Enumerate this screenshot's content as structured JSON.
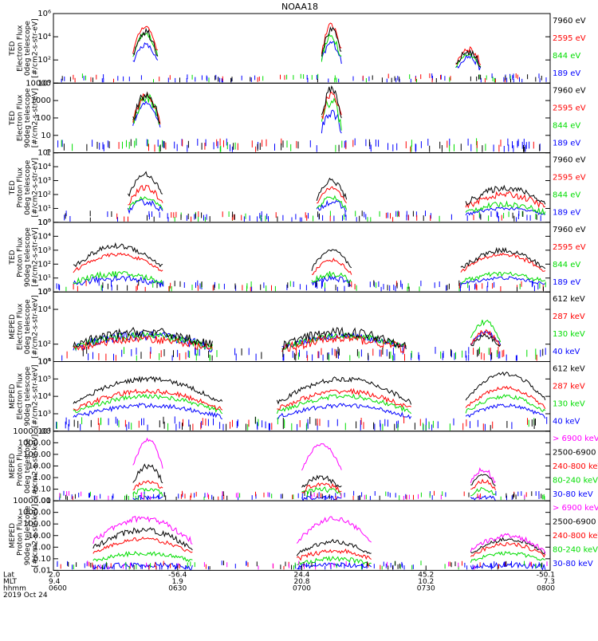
{
  "title": "NOAA18",
  "colors": {
    "black": "#000000",
    "red": "#ff0000",
    "green": "#00dd00",
    "blue": "#0000ff",
    "magenta": "#ff00ff"
  },
  "time_axis": {
    "rows": [
      {
        "label": "Lat",
        "values": [
          "2.0",
          "-56.4",
          "24.4",
          "45.2",
          "-50.1"
        ]
      },
      {
        "label": "MLT",
        "values": [
          "9.4",
          "1.9",
          "20.8",
          "10.2",
          "7.3"
        ]
      },
      {
        "label": "hhmm",
        "values": [
          "0600",
          "0630",
          "0700",
          "0730",
          "0800"
        ]
      }
    ],
    "date": "2019 Oct 24"
  },
  "chart_data": [
    {
      "type": "line",
      "scale": "log",
      "ylim": [
        1,
        1000000
      ],
      "ylabel_lines": [
        "TED",
        "Electron Flux",
        "0deg telescope",
        "[#/cm2-s-str-eV]"
      ],
      "y_ticks": [
        1,
        100,
        10000,
        1000000
      ],
      "y_tick_labels": [
        "10⁰",
        "10²",
        "10⁴",
        "10⁶"
      ],
      "legend": [
        {
          "label": "7960 eV",
          "color": "#000000"
        },
        {
          "label": "2595 eV",
          "color": "#ff0000"
        },
        {
          "label": "844 eV",
          "color": "#00dd00"
        },
        {
          "label": "189 eV",
          "color": "#0000ff"
        }
      ],
      "bursts": [
        {
          "t": [
            0.16,
            0.21
          ],
          "levels": [
            2000,
            20000,
            80000,
            30000
          ],
          "noise": [
            0.25,
            0.8
          ]
        },
        {
          "t": [
            0.54,
            0.58
          ],
          "levels": [
            3000,
            10000,
            100000,
            40000
          ],
          "noise": [
            0.25,
            0.85
          ]
        },
        {
          "t": [
            0.81,
            0.86
          ],
          "levels": [
            200,
            300,
            1000,
            500
          ],
          "noise": [
            0.25,
            0.7
          ]
        }
      ]
    },
    {
      "type": "line",
      "scale": "log",
      "ylim": [
        1,
        10000
      ],
      "ylabel_lines": [
        "TED",
        "Electron Flux",
        "90deg telescope",
        "[#/cm2-s-str-eV]"
      ],
      "y_ticks": [
        1,
        10,
        100,
        1000,
        10000
      ],
      "y_tick_labels": [
        "1",
        "10",
        "100",
        "1000",
        "10000"
      ],
      "legend": [
        {
          "label": "7960 eV",
          "color": "#000000"
        },
        {
          "label": "2595 eV",
          "color": "#ff0000"
        },
        {
          "label": "844 eV",
          "color": "#00dd00"
        },
        {
          "label": "189 eV",
          "color": "#0000ff"
        }
      ],
      "bursts": [
        {
          "t": [
            0.16,
            0.215
          ],
          "levels": [
            700,
            1500,
            2000,
            2000
          ],
          "noise": [
            0.25,
            0.8
          ]
        },
        {
          "t": [
            0.54,
            0.58
          ],
          "levels": [
            300,
            1000,
            3000,
            5000
          ],
          "noise": [
            0.25,
            0.85
          ]
        }
      ]
    },
    {
      "type": "line",
      "scale": "log",
      "ylim": [
        1,
        100000
      ],
      "ylabel_lines": [
        "TED",
        "Proton Flux",
        "0deg telescope",
        "[#/cm2-s-str-eV]"
      ],
      "y_ticks": [
        1,
        10,
        100,
        1000,
        10000,
        100000
      ],
      "y_tick_labels": [
        "10⁰",
        "10¹",
        "10²",
        "10³",
        "10⁴",
        "10⁵"
      ],
      "legend": [
        {
          "label": "7960 eV",
          "color": "#000000"
        },
        {
          "label": "2595 eV",
          "color": "#ff0000"
        },
        {
          "label": "844 eV",
          "color": "#00dd00"
        },
        {
          "label": "189 eV",
          "color": "#0000ff"
        }
      ],
      "bursts": [
        {
          "t": [
            0.15,
            0.22
          ],
          "levels": [
            30,
            60,
            300,
            3000
          ],
          "noise": [
            0.2,
            0.5
          ]
        },
        {
          "t": [
            0.53,
            0.59
          ],
          "levels": [
            30,
            60,
            300,
            1000
          ],
          "noise": [
            0.2,
            0.5
          ]
        },
        {
          "t": [
            0.83,
            0.99
          ],
          "levels": [
            10,
            20,
            100,
            300
          ],
          "noise": [
            0.2,
            0.45
          ]
        }
      ]
    },
    {
      "type": "line",
      "scale": "log",
      "ylim": [
        1,
        100000
      ],
      "ylabel_lines": [
        "TED",
        "Proton Flux",
        "90deg telescope",
        "[#/cm2-s-str-eV]"
      ],
      "y_ticks": [
        1,
        10,
        100,
        1000,
        10000,
        100000
      ],
      "y_tick_labels": [
        "10⁰",
        "10¹",
        "10²",
        "10³",
        "10⁴",
        "10⁵"
      ],
      "legend": [
        {
          "label": "7960 eV",
          "color": "#000000"
        },
        {
          "label": "2595 eV",
          "color": "#ff0000"
        },
        {
          "label": "844 eV",
          "color": "#00dd00"
        },
        {
          "label": "189 eV",
          "color": "#0000ff"
        }
      ],
      "bursts": [
        {
          "t": [
            0.04,
            0.22
          ],
          "levels": [
            10,
            20,
            500,
            2000
          ],
          "noise": [
            0.2,
            0.5
          ]
        },
        {
          "t": [
            0.52,
            0.6
          ],
          "levels": [
            10,
            20,
            200,
            1000
          ],
          "noise": [
            0.2,
            0.5
          ]
        },
        {
          "t": [
            0.82,
            0.99
          ],
          "levels": [
            10,
            20,
            500,
            1000
          ],
          "noise": [
            0.2,
            0.45
          ]
        }
      ]
    },
    {
      "type": "line",
      "scale": "log",
      "ylim": [
        10,
        100000
      ],
      "ylabel_lines": [
        "MEPED",
        "Electron Flux",
        "0deg telescope",
        "[#/cm2-s-str-keV]"
      ],
      "y_ticks": [
        10,
        100,
        10000,
        100000
      ],
      "y_tick_labels": [
        "10¹",
        "10²",
        "10⁴",
        "10⁵"
      ],
      "legend": [
        {
          "label": "612 keV",
          "color": "#000000"
        },
        {
          "label": "287 keV",
          "color": "#ff0000"
        },
        {
          "label": "130 keV",
          "color": "#00dd00"
        },
        {
          "label": "40 keV",
          "color": "#0000ff"
        }
      ],
      "bursts": [
        {
          "t": [
            0.04,
            0.32
          ],
          "levels": [
            300,
            300,
            200,
            500
          ],
          "noise": [
            0.3,
            0.6
          ]
        },
        {
          "t": [
            0.46,
            0.71
          ],
          "levels": [
            300,
            300,
            200,
            500
          ],
          "noise": [
            0.3,
            0.6
          ]
        },
        {
          "t": [
            0.84,
            0.9
          ],
          "levels": [
            500,
            2000,
            500,
            300
          ],
          "noise": [
            0.2,
            0.4
          ]
        }
      ]
    },
    {
      "type": "line",
      "scale": "log",
      "ylim": [
        100,
        1000000
      ],
      "ylabel_lines": [
        "MEPED",
        "Electron Flux",
        "90deg telescope",
        "[#/cm2-s-str-keV]"
      ],
      "y_ticks": [
        100,
        1000,
        10000,
        100000,
        1000000
      ],
      "y_tick_labels": [
        "10²",
        "10³",
        "10⁴",
        "10⁵",
        "10⁶"
      ],
      "legend": [
        {
          "label": "612 keV",
          "color": "#000000"
        },
        {
          "label": "287 keV",
          "color": "#ff0000"
        },
        {
          "label": "130 keV",
          "color": "#00dd00"
        },
        {
          "label": "40 keV",
          "color": "#0000ff"
        }
      ],
      "bursts": [
        {
          "t": [
            0.04,
            0.34
          ],
          "levels": [
            3000,
            10000,
            20000,
            100000
          ],
          "noise": [
            0.15,
            0.3
          ]
        },
        {
          "t": [
            0.45,
            0.72
          ],
          "levels": [
            3000,
            10000,
            20000,
            100000
          ],
          "noise": [
            0.15,
            0.3
          ]
        },
        {
          "t": [
            0.83,
            0.99
          ],
          "levels": [
            3000,
            10000,
            30000,
            200000
          ],
          "noise": [
            0.15,
            0.3
          ]
        }
      ]
    },
    {
      "type": "line",
      "scale": "log",
      "ylim": [
        0.01,
        10000
      ],
      "ylabel_lines": [
        "MEPED",
        "Proton Flux",
        "0deg telescope",
        "[#/cm2-s-str-keV]"
      ],
      "y_ticks": [
        0.01,
        0.1,
        1,
        10,
        100,
        1000,
        10000
      ],
      "y_tick_labels": [
        "0.01",
        "0.10",
        "1.00",
        "10.00",
        "100.00",
        "1000.00",
        "10000.00"
      ],
      "legend": [
        {
          "label": "> 6900 keV",
          "color": "#ff00ff"
        },
        {
          "label": "2500-6900",
          "color": "#000000"
        },
        {
          "label": "240-800 keV",
          "color": "#ff0000"
        },
        {
          "label": "80-240 keV",
          "color": "#00dd00"
        },
        {
          "label": "30-80 keV",
          "color": "#0000ff"
        }
      ],
      "bursts": [
        {
          "t": [
            0.16,
            0.22
          ],
          "levels": [
            0.02,
            0.1,
            0.5,
            10,
            2000
          ],
          "noise": [
            0.3,
            0.6
          ]
        },
        {
          "t": [
            0.5,
            0.58
          ],
          "levels": [
            0.02,
            0.1,
            0.3,
            1,
            700
          ],
          "noise": [
            0.3,
            0.5
          ]
        },
        {
          "t": [
            0.84,
            0.89
          ],
          "levels": [
            0.02,
            0.1,
            0.5,
            2,
            5
          ],
          "noise": [
            0.25,
            0.5
          ]
        }
      ]
    },
    {
      "type": "line",
      "scale": "log",
      "ylim": [
        0.01,
        10000
      ],
      "ylabel_lines": [
        "MEPED",
        "Proton Flux",
        "90deg telescope",
        "[#/cm2-s-str-keV]"
      ],
      "y_ticks": [
        0.01,
        0.1,
        1,
        10,
        100,
        1000,
        10000
      ],
      "y_tick_labels": [
        "0.01",
        "0.10",
        "1.00",
        "10.00",
        "100.00",
        "1000.00",
        "10000.00"
      ],
      "legend": [
        {
          "label": "> 6900 keV",
          "color": "#ff00ff"
        },
        {
          "label": "2500-6900",
          "color": "#000000"
        },
        {
          "label": "240-800 keV",
          "color": "#ff0000"
        },
        {
          "label": "80-240 keV",
          "color": "#00dd00"
        },
        {
          "label": "30-80 keV",
          "color": "#0000ff"
        }
      ],
      "bursts": [
        {
          "t": [
            0.08,
            0.28
          ],
          "levels": [
            0.03,
            0.3,
            5,
            30,
            300
          ],
          "noise": [
            0.3,
            0.5
          ]
        },
        {
          "t": [
            0.49,
            0.64
          ],
          "levels": [
            0.03,
            0.1,
            0.5,
            3,
            300
          ],
          "noise": [
            0.3,
            0.5
          ]
        },
        {
          "t": [
            0.84,
            0.99
          ],
          "levels": [
            0.03,
            0.3,
            2,
            5,
            10
          ],
          "noise": [
            0.25,
            0.5
          ]
        }
      ]
    }
  ]
}
